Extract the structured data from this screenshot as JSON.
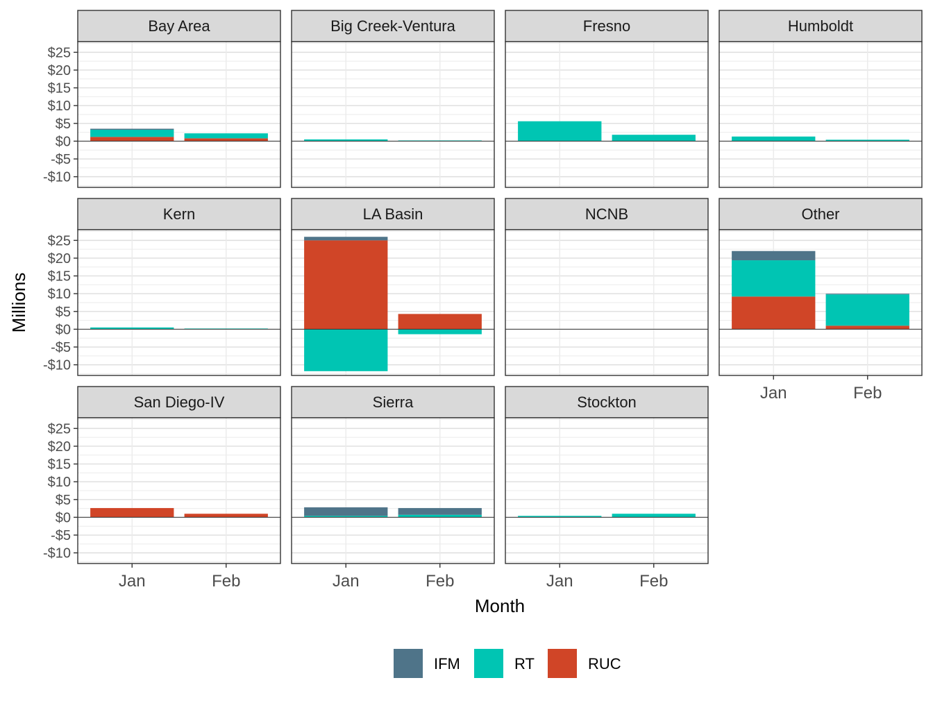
{
  "chart_data": {
    "type": "bar",
    "stacked": true,
    "facet_layout": "4 columns x 3 rows",
    "xlabel": "Month",
    "ylabel": "Millions",
    "categories": [
      "Jan",
      "Feb"
    ],
    "ylim": [
      -13,
      28
    ],
    "yticks": [
      -10,
      -5,
      0,
      5,
      10,
      15,
      20,
      25
    ],
    "ytick_labels": [
      "-$10",
      "-$5",
      "$0",
      "$5",
      "$10",
      "$15",
      "$20",
      "$25"
    ],
    "legend": {
      "position": "bottom",
      "entries": [
        "IFM",
        "RT",
        "RUC"
      ]
    },
    "colors": {
      "IFM": "#4f7489",
      "RT": "#00c5b3",
      "RUC": "#d04527"
    },
    "panels": [
      {
        "name": "Bay Area",
        "series": [
          {
            "name": "RUC",
            "values": [
              1.2,
              0.8
            ]
          },
          {
            "name": "RT",
            "values": [
              2.0,
              1.4
            ]
          },
          {
            "name": "IFM",
            "values": [
              0.3,
              0.0
            ]
          }
        ]
      },
      {
        "name": "Big Creek-Ventura",
        "series": [
          {
            "name": "RUC",
            "values": [
              0.0,
              0.0
            ]
          },
          {
            "name": "RT",
            "values": [
              0.5,
              0.2
            ]
          },
          {
            "name": "IFM",
            "values": [
              0.0,
              0.0
            ]
          }
        ]
      },
      {
        "name": "Fresno",
        "series": [
          {
            "name": "RUC",
            "values": [
              0.0,
              0.0
            ]
          },
          {
            "name": "RT",
            "values": [
              5.6,
              1.8
            ]
          },
          {
            "name": "IFM",
            "values": [
              0.0,
              0.0
            ]
          }
        ]
      },
      {
        "name": "Humboldt",
        "series": [
          {
            "name": "RUC",
            "values": [
              0.0,
              0.0
            ]
          },
          {
            "name": "RT",
            "values": [
              1.3,
              0.4
            ]
          },
          {
            "name": "IFM",
            "values": [
              0.0,
              0.0
            ]
          }
        ]
      },
      {
        "name": "Kern",
        "series": [
          {
            "name": "RUC",
            "values": [
              0.0,
              0.0
            ]
          },
          {
            "name": "RT",
            "values": [
              0.5,
              0.2
            ]
          },
          {
            "name": "IFM",
            "values": [
              0.0,
              0.0
            ]
          }
        ]
      },
      {
        "name": "LA Basin",
        "series": [
          {
            "name": "RUC",
            "values": [
              25.0,
              4.3
            ]
          },
          {
            "name": "RT",
            "values": [
              -11.8,
              -1.4
            ]
          },
          {
            "name": "IFM",
            "values": [
              1.0,
              0.0
            ]
          }
        ]
      },
      {
        "name": "NCNB",
        "series": [
          {
            "name": "RUC",
            "values": [
              0.0,
              0.0
            ]
          },
          {
            "name": "RT",
            "values": [
              0.0,
              0.0
            ]
          },
          {
            "name": "IFM",
            "values": [
              0.0,
              0.0
            ]
          }
        ]
      },
      {
        "name": "Other",
        "series": [
          {
            "name": "RUC",
            "values": [
              9.2,
              1.0
            ]
          },
          {
            "name": "RT",
            "values": [
              10.2,
              8.8
            ]
          },
          {
            "name": "IFM",
            "values": [
              2.6,
              0.2
            ]
          }
        ]
      },
      {
        "name": "San Diego-IV",
        "series": [
          {
            "name": "RUC",
            "values": [
              2.6,
              1.0
            ]
          },
          {
            "name": "RT",
            "values": [
              0.0,
              0.0
            ]
          },
          {
            "name": "IFM",
            "values": [
              0.0,
              0.0
            ]
          }
        ]
      },
      {
        "name": "Sierra",
        "series": [
          {
            "name": "RUC",
            "values": [
              0.0,
              0.0
            ]
          },
          {
            "name": "RT",
            "values": [
              0.4,
              0.7
            ]
          },
          {
            "name": "IFM",
            "values": [
              2.4,
              1.9
            ]
          }
        ]
      },
      {
        "name": "Stockton",
        "series": [
          {
            "name": "RUC",
            "values": [
              0.0,
              0.0
            ]
          },
          {
            "name": "RT",
            "values": [
              0.4,
              1.0
            ]
          },
          {
            "name": "IFM",
            "values": [
              0.0,
              0.0
            ]
          }
        ]
      }
    ]
  }
}
